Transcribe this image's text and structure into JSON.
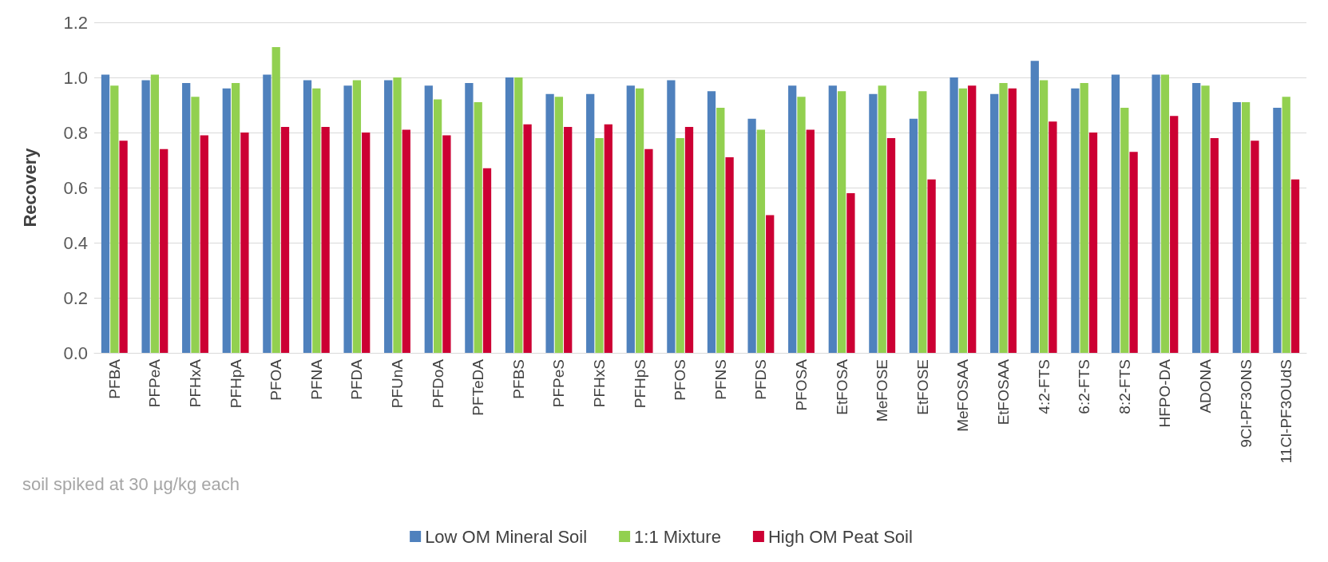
{
  "chart_data": {
    "type": "bar",
    "ylabel": "Recovery",
    "categories": [
      "PFBA",
      "PFPeA",
      "PFHxA",
      "PFHpA",
      "PFOA",
      "PFNA",
      "PFDA",
      "PFUnA",
      "PFDoA",
      "PFTeDA",
      "PFBS",
      "PFPeS",
      "PFHxS",
      "PFHpS",
      "PFOS",
      "PFNS",
      "PFDS",
      "PFOSA",
      "EtFOSA",
      "MeFOSE",
      "EtFOSE",
      "MeFOSAA",
      "EtFOSAA",
      "4:2-FTS",
      "6:2-FTS",
      "8:2-FTS",
      "HFPO-DA",
      "ADONA",
      "9Cl-PF3ONS",
      "11Cl-PF3OUdS"
    ],
    "series": [
      {
        "name": "Low OM Mineral Soil",
        "color": "#4f81bd",
        "values": [
          1.01,
          0.99,
          0.98,
          0.96,
          1.01,
          0.99,
          0.97,
          0.99,
          0.97,
          0.98,
          1.0,
          0.94,
          0.94,
          0.97,
          0.99,
          0.95,
          0.85,
          0.97,
          0.97,
          0.94,
          0.85,
          1.0,
          0.94,
          1.06,
          0.96,
          1.01,
          1.01,
          0.98,
          0.91,
          0.89
        ]
      },
      {
        "name": "1:1 Mixture",
        "color": "#92d050",
        "values": [
          0.97,
          1.01,
          0.93,
          0.98,
          1.11,
          0.96,
          0.99,
          1.0,
          0.92,
          0.91,
          1.0,
          0.93,
          0.78,
          0.96,
          0.78,
          0.89,
          0.81,
          0.93,
          0.95,
          0.97,
          0.95,
          0.96,
          0.98,
          0.99,
          0.98,
          0.89,
          1.01,
          0.97,
          0.91,
          0.93
        ]
      },
      {
        "name": "High OM Peat Soil",
        "color": "#cc0033",
        "values": [
          0.77,
          0.74,
          0.79,
          0.8,
          0.82,
          0.82,
          0.8,
          0.81,
          0.79,
          0.67,
          0.83,
          0.82,
          0.83,
          0.74,
          0.82,
          0.71,
          0.5,
          0.81,
          0.58,
          0.78,
          0.63,
          0.97,
          0.96,
          0.84,
          0.8,
          0.73,
          0.86,
          0.78,
          0.77,
          0.63
        ]
      }
    ],
    "ylim": [
      0,
      1.2
    ],
    "yticks": [
      {
        "value": 0,
        "label": "0.0"
      },
      0.2,
      0.4,
      0.6,
      0.8,
      {
        "value": 1,
        "label": "1.0"
      },
      1.2
    ],
    "grid": "y",
    "legend": "bottom",
    "annotations": [
      "soil spiked at 30 µg/kg each"
    ]
  }
}
